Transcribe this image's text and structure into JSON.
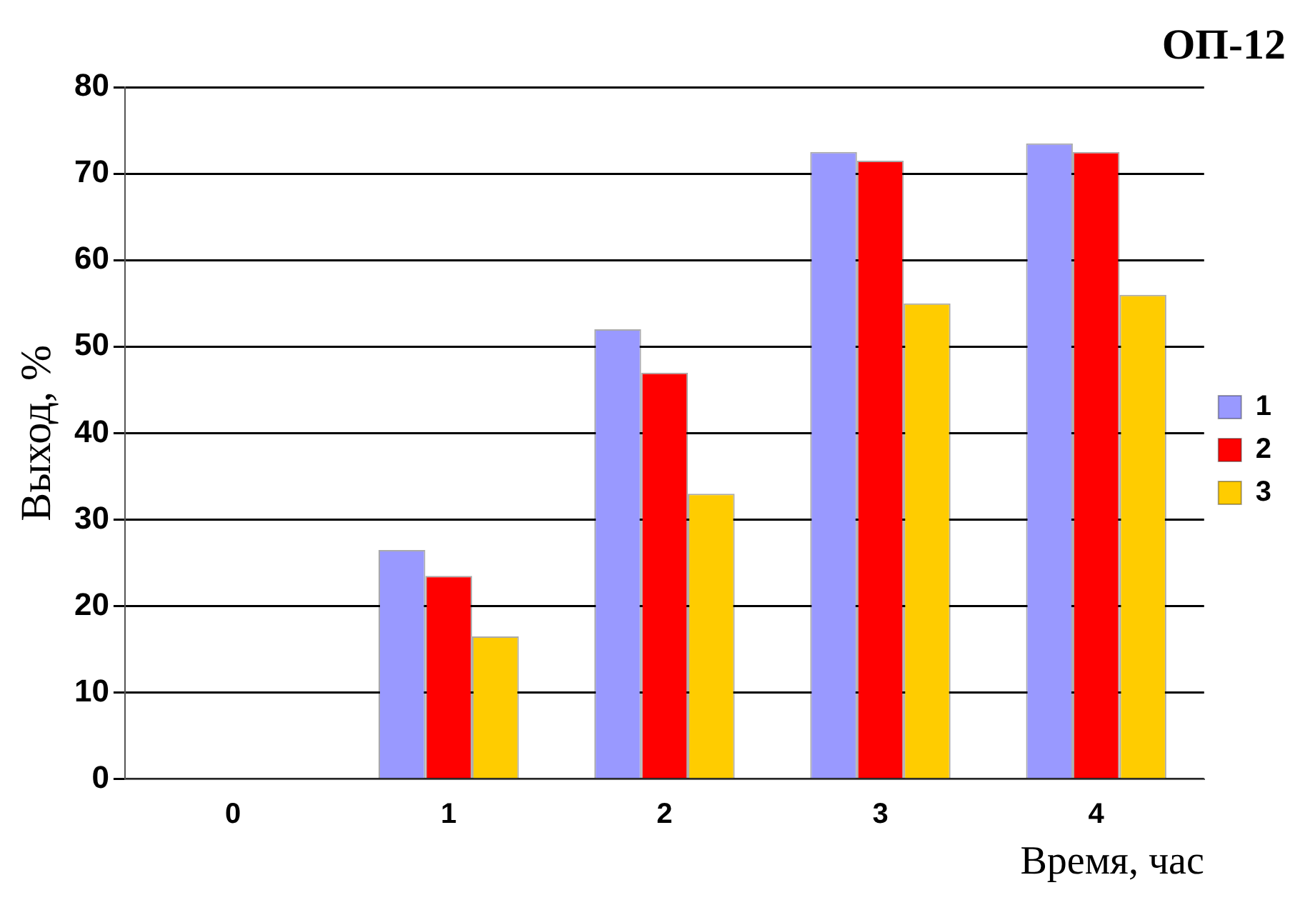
{
  "chart_data": {
    "type": "bar",
    "title": "ОП-12",
    "xlabel": "Время, час",
    "ylabel": "Выход, %",
    "categories": [
      "0",
      "1",
      "2",
      "3",
      "4"
    ],
    "series": [
      {
        "name": "1",
        "color": "#9999ff",
        "values": [
          0,
          26.5,
          52,
          72.5,
          73.5
        ]
      },
      {
        "name": "2",
        "color": "#ff0000",
        "values": [
          0,
          23.5,
          47,
          71.5,
          72.5
        ]
      },
      {
        "name": "3",
        "color": "#ffcc00",
        "values": [
          0,
          16.5,
          33,
          55,
          56
        ]
      }
    ],
    "ylim": [
      0,
      80
    ],
    "yticks": [
      0,
      10,
      20,
      30,
      40,
      50,
      60,
      70,
      80
    ],
    "grid": "y",
    "legend": "right"
  }
}
